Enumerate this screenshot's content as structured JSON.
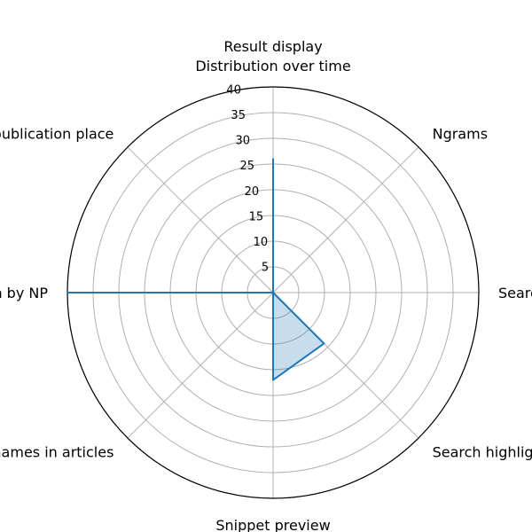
{
  "chart_data": {
    "type": "radar",
    "title": "Result display",
    "categories": [
      "Distribution over time",
      "Ngrams",
      "Search highlight",
      "Search highlight in facsimile",
      "Snippet preview",
      "Distribution by place names in articles",
      "Distribution by NP",
      "Distribution by publication place"
    ],
    "series": [
      {
        "name": "Result display",
        "values": [
          26,
          0,
          0,
          14,
          17,
          0,
          40,
          0
        ]
      }
    ],
    "rlim": [
      0,
      40
    ],
    "rticks": [
      5,
      10,
      15,
      20,
      25,
      30,
      35,
      40
    ],
    "rtick_labels": [
      "5",
      "10",
      "15",
      "20",
      "25",
      "30",
      "35",
      "40"
    ],
    "grid": true,
    "line_color": "#1f77b4",
    "fill_color": "#1f77b4"
  }
}
